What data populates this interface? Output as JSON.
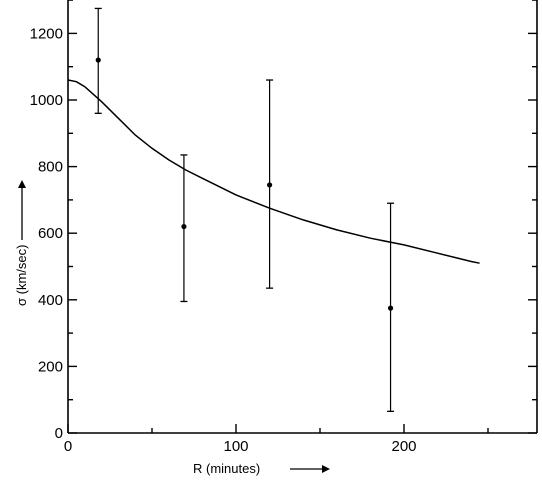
{
  "chart_data": {
    "type": "scatter",
    "xlabel": "R (minutes)",
    "ylabel": "σ (km/sec)",
    "xlim": [
      0,
      280
    ],
    "ylim": [
      0,
      1300
    ],
    "x_ticks": [
      0,
      100,
      200
    ],
    "y_ticks": [
      0,
      200,
      400,
      600,
      800,
      1000,
      1200
    ],
    "grid": false,
    "legend": "none",
    "points": [
      {
        "x": 18,
        "y": 1120,
        "err_low": 960,
        "err_high": 1275
      },
      {
        "x": 69,
        "y": 620,
        "err_low": 395,
        "err_high": 835
      },
      {
        "x": 120,
        "y": 745,
        "err_low": 435,
        "err_high": 1060
      },
      {
        "x": 192,
        "y": 375,
        "err_low": 65,
        "err_high": 690
      }
    ],
    "curve": {
      "x": [
        0,
        5,
        10,
        20,
        30,
        40,
        50,
        60,
        70,
        80,
        100,
        120,
        140,
        160,
        180,
        200,
        220,
        240,
        245
      ],
      "y": [
        1060,
        1055,
        1040,
        995,
        945,
        895,
        855,
        820,
        790,
        765,
        715,
        675,
        640,
        610,
        585,
        565,
        540,
        515,
        510
      ]
    }
  }
}
